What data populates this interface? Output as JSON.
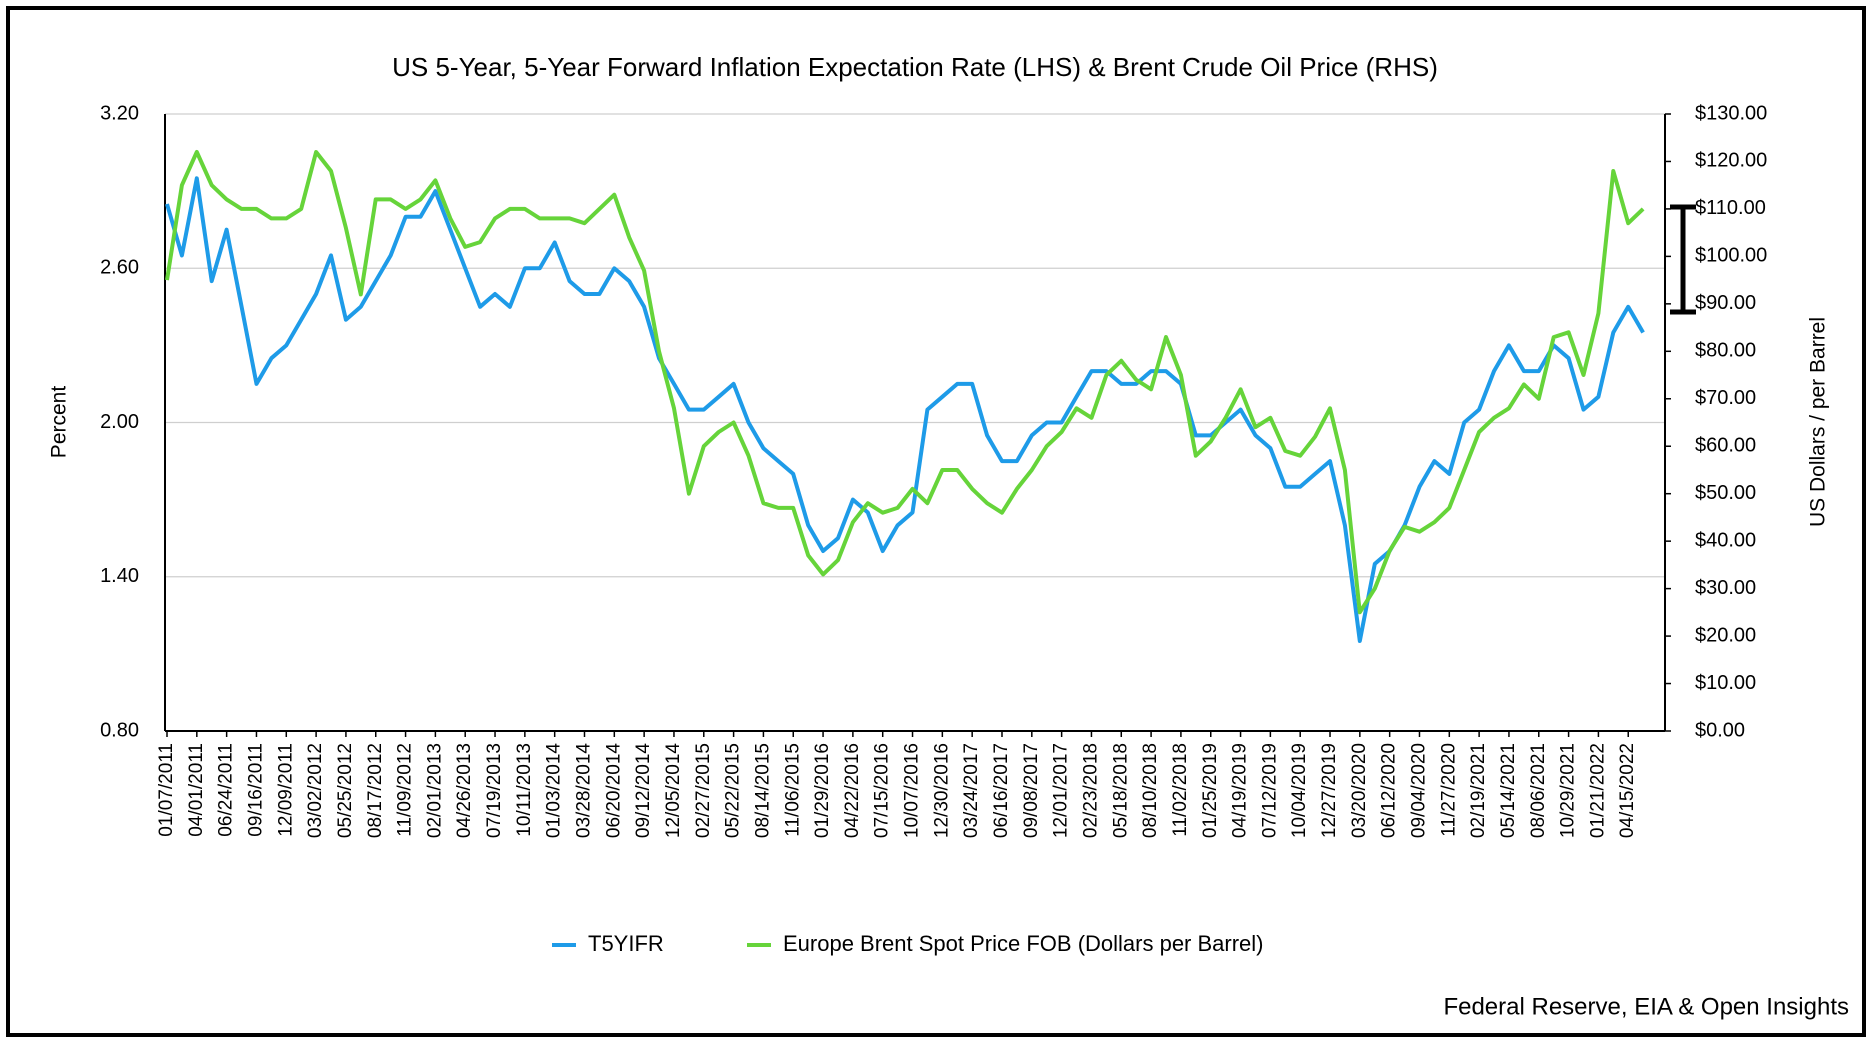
{
  "chart_data": {
    "type": "line",
    "title": "US 5-Year, 5-Year Forward Inflation Expectation Rate (LHS) & Brent Crude Oil Price (RHS)",
    "ylabel": "Percent",
    "y2label": "US Dollars / per Barrel",
    "source": "Federal Reserve, EIA & Open Insights",
    "categories": [
      "01/07/2011",
      null,
      "04/01/2011",
      null,
      "06/24/2011",
      null,
      "09/16/2011",
      null,
      "12/09/2011",
      null,
      "03/02/2012",
      null,
      "05/25/2012",
      null,
      "08/17/2012",
      null,
      "11/09/2012",
      null,
      "02/01/2013",
      null,
      "04/26/2013",
      null,
      "07/19/2013",
      null,
      "10/11/2013",
      null,
      "01/03/2014",
      null,
      "03/28/2014",
      null,
      "06/20/2014",
      null,
      "09/12/2014",
      null,
      "12/05/2014",
      null,
      "02/27/2015",
      null,
      "05/22/2015",
      null,
      "08/14/2015",
      null,
      "11/06/2015",
      null,
      "01/29/2016",
      null,
      "04/22/2016",
      null,
      "07/15/2016",
      null,
      "10/07/2016",
      null,
      "12/30/2016",
      null,
      "03/24/2017",
      null,
      "06/16/2017",
      null,
      "09/08/2017",
      null,
      "12/01/2017",
      null,
      "02/23/2018",
      null,
      "05/18/2018",
      null,
      "08/10/2018",
      null,
      "11/02/2018",
      null,
      "01/25/2019",
      null,
      "04/19/2019",
      null,
      "07/12/2019",
      null,
      "10/04/2019",
      null,
      "12/27/2019",
      null,
      "03/20/2020",
      null,
      "06/12/2020",
      null,
      "09/04/2020",
      null,
      "11/27/2020",
      null,
      "02/19/2021",
      null,
      "05/14/2021",
      null,
      "08/06/2021",
      null,
      "10/29/2021",
      null,
      "01/21/2022",
      null,
      "04/15/2022",
      null
    ],
    "series": [
      {
        "name": "T5YIFR",
        "color": "#1e9be8",
        "axis": "y",
        "values": [
          2.85,
          2.65,
          2.95,
          2.55,
          2.75,
          2.45,
          2.15,
          2.25,
          2.3,
          2.4,
          2.5,
          2.65,
          2.4,
          2.45,
          2.55,
          2.65,
          2.8,
          2.8,
          2.9,
          2.75,
          2.6,
          2.45,
          2.5,
          2.45,
          2.6,
          2.6,
          2.7,
          2.55,
          2.5,
          2.5,
          2.6,
          2.55,
          2.45,
          2.25,
          2.15,
          2.05,
          2.05,
          2.1,
          2.15,
          2.0,
          1.9,
          1.85,
          1.8,
          1.6,
          1.5,
          1.55,
          1.7,
          1.65,
          1.5,
          1.6,
          1.65,
          2.05,
          2.1,
          2.15,
          2.15,
          1.95,
          1.85,
          1.85,
          1.95,
          2.0,
          2.0,
          2.1,
          2.2,
          2.2,
          2.15,
          2.15,
          2.2,
          2.2,
          2.15,
          1.95,
          1.95,
          2.0,
          2.05,
          1.95,
          1.9,
          1.75,
          1.75,
          1.8,
          1.85,
          1.6,
          1.15,
          1.45,
          1.5,
          1.6,
          1.75,
          1.85,
          1.8,
          2.0,
          2.05,
          2.2,
          2.3,
          2.2,
          2.2,
          2.3,
          2.25,
          2.05,
          2.1,
          2.35,
          2.45,
          2.35
        ]
      },
      {
        "name": "Europe Brent Spot Price FOB (Dollars per Barrel)",
        "color": "#66d43a",
        "axis": "y2",
        "values": [
          95,
          115,
          122,
          115,
          112,
          110,
          110,
          108,
          108,
          110,
          122,
          118,
          106,
          92,
          112,
          112,
          110,
          112,
          116,
          108,
          102,
          103,
          108,
          110,
          110,
          108,
          108,
          108,
          107,
          110,
          113,
          104,
          97,
          80,
          68,
          50,
          60,
          63,
          65,
          58,
          48,
          47,
          47,
          37,
          33,
          36,
          44,
          48,
          46,
          47,
          51,
          48,
          55,
          55,
          51,
          48,
          46,
          51,
          55,
          60,
          63,
          68,
          66,
          75,
          78,
          74,
          72,
          83,
          75,
          58,
          61,
          66,
          72,
          64,
          66,
          59,
          58,
          62,
          68,
          55,
          25,
          30,
          38,
          43,
          42,
          44,
          47,
          55,
          63,
          66,
          68,
          73,
          70,
          83,
          84,
          75,
          88,
          118,
          107,
          110
        ]
      }
    ],
    "ylim": [
      0.8,
      3.2
    ],
    "yticks": [
      {
        "value": 0.8,
        "label": "0.80"
      },
      {
        "value": 1.4,
        "label": "1.40"
      },
      {
        "value": 2.0,
        "label": "2.00"
      },
      {
        "value": 2.6,
        "label": "2.60"
      },
      {
        "value": 3.2,
        "label": "3.20"
      }
    ],
    "y2lim": [
      0,
      130
    ],
    "y2ticks": [
      {
        "value": 0,
        "label": "$0.00"
      },
      {
        "value": 10,
        "label": "$10.00"
      },
      {
        "value": 20,
        "label": "$20.00"
      },
      {
        "value": 30,
        "label": "$30.00"
      },
      {
        "value": 40,
        "label": "$40.00"
      },
      {
        "value": 50,
        "label": "$50.00"
      },
      {
        "value": 60,
        "label": "$60.00"
      },
      {
        "value": 70,
        "label": "$70.00"
      },
      {
        "value": 80,
        "label": "$80.00"
      },
      {
        "value": 90,
        "label": "$90.00"
      },
      {
        "value": 100,
        "label": "$100.00"
      },
      {
        "value": 110,
        "label": "$110.00"
      },
      {
        "value": 120,
        "label": "$120.00"
      },
      {
        "value": 130,
        "label": "$130.00"
      }
    ],
    "grid": true,
    "legend": "bottom"
  }
}
